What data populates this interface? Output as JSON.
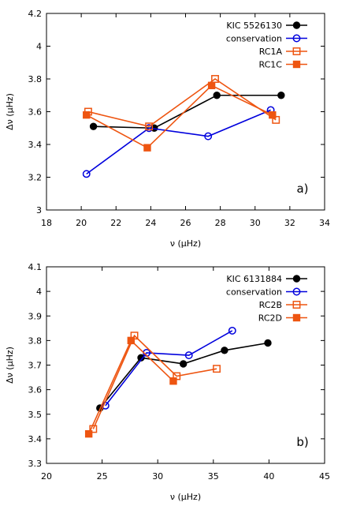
{
  "chart_data": [
    {
      "type": "line",
      "panel_label": "a)",
      "xlabel": "ν (μHz)",
      "ylabel": "Δν (μHz)",
      "xlim": [
        18,
        34
      ],
      "ylim": [
        3,
        4.2
      ],
      "xticks": [
        "18",
        "20",
        "22",
        "24",
        "26",
        "28",
        "30",
        "32",
        "34"
      ],
      "yticks": [
        "3",
        "3.2",
        "3.4",
        "3.6",
        "3.8",
        "4",
        "4.2"
      ],
      "legend_position": "top-right",
      "series": [
        {
          "name": "KIC 5526130",
          "color": "#000000",
          "marker": "filled-circle",
          "x": [
            20.7,
            24.2,
            27.8,
            31.5
          ],
          "y": [
            3.51,
            3.5,
            3.7,
            3.7
          ]
        },
        {
          "name": "conservation",
          "color": "#0000dd",
          "marker": "open-circle",
          "x": [
            20.3,
            23.9,
            27.3,
            30.9
          ],
          "y": [
            3.22,
            3.5,
            3.45,
            3.61
          ]
        },
        {
          "name": "RC1A",
          "color": "#ee5511",
          "marker": "open-square",
          "x": [
            20.4,
            23.9,
            27.7,
            31.2
          ],
          "y": [
            3.6,
            3.51,
            3.8,
            3.55
          ]
        },
        {
          "name": "RC1C",
          "color": "#ee5511",
          "marker": "filled-square",
          "x": [
            20.3,
            23.8,
            27.5,
            31.0
          ],
          "y": [
            3.58,
            3.38,
            3.76,
            3.58
          ]
        }
      ]
    },
    {
      "type": "line",
      "panel_label": "b)",
      "xlabel": "ν (μHz)",
      "ylabel": "Δν (μHz)",
      "xlim": [
        20,
        45
      ],
      "ylim": [
        3.3,
        4.1
      ],
      "xticks": [
        "20",
        "25",
        "30",
        "35",
        "40",
        "45"
      ],
      "yticks": [
        "3.3",
        "3.4",
        "3.5",
        "3.6",
        "3.7",
        "3.8",
        "3.9",
        "4",
        "4.1"
      ],
      "legend_position": "top-right",
      "series": [
        {
          "name": "KIC 6131884",
          "color": "#000000",
          "marker": "filled-circle",
          "x": [
            24.8,
            28.5,
            32.3,
            36.0,
            39.9
          ],
          "y": [
            3.525,
            3.73,
            3.705,
            3.76,
            3.79
          ]
        },
        {
          "name": "conservation",
          "color": "#0000dd",
          "marker": "open-circle",
          "x": [
            25.3,
            29.0,
            32.8,
            36.7
          ],
          "y": [
            3.535,
            3.75,
            3.74,
            3.84
          ]
        },
        {
          "name": "RC2B",
          "color": "#ee5511",
          "marker": "open-square",
          "x": [
            24.2,
            27.9,
            31.7,
            35.3
          ],
          "y": [
            3.44,
            3.82,
            3.655,
            3.685
          ]
        },
        {
          "name": "RC2D",
          "color": "#ee5511",
          "marker": "filled-square",
          "x": [
            23.8,
            27.6,
            31.4
          ],
          "y": [
            3.42,
            3.8,
            3.635
          ]
        }
      ]
    }
  ]
}
